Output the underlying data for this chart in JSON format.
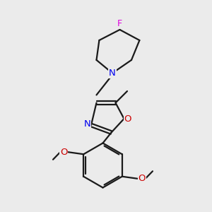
{
  "background_color": "#ebebeb",
  "bond_color": "#1a1a1a",
  "N_color": "#0000ee",
  "O_color": "#cc0000",
  "F_color": "#dd00dd",
  "line_width": 1.6,
  "figsize": [
    3.0,
    3.0
  ],
  "dpi": 100,
  "xlim": [
    0,
    10
  ],
  "ylim": [
    0,
    10
  ]
}
